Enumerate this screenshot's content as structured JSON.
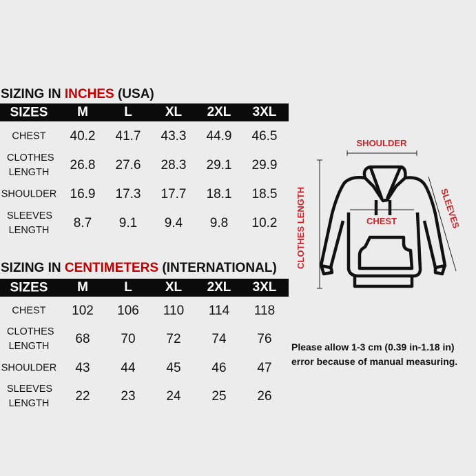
{
  "sizes_header": "SIZES",
  "sizes": [
    "M",
    "L",
    "XL",
    "2XL",
    "3XL"
  ],
  "inches": {
    "title_pre": "SIZING IN ",
    "title_unit": "INCHES",
    "title_post": " (USA)",
    "rows": [
      {
        "label": "CHEST",
        "values": [
          "40.2",
          "41.7",
          "43.3",
          "44.9",
          "46.5"
        ]
      },
      {
        "label": "CLOTHES LENGTH",
        "values": [
          "26.8",
          "27.6",
          "28.3",
          "29.1",
          "29.9"
        ]
      },
      {
        "label": "SHOULDER",
        "values": [
          "16.9",
          "17.3",
          "17.7",
          "18.1",
          "18.5"
        ]
      },
      {
        "label": "SLEEVES LENGTH",
        "values": [
          "8.7",
          "9.1",
          "9.4",
          "9.8",
          "10.2"
        ]
      }
    ]
  },
  "cm": {
    "title_pre": "SIZING IN ",
    "title_unit": "CENTIMETERS",
    "title_post": " (INTERNATIONAL)",
    "rows": [
      {
        "label": "CHEST",
        "values": [
          "102",
          "106",
          "110",
          "114",
          "118"
        ]
      },
      {
        "label": "CLOTHES LENGTH",
        "values": [
          "68",
          "70",
          "72",
          "74",
          "76"
        ]
      },
      {
        "label": "SHOULDER",
        "values": [
          "43",
          "44",
          "45",
          "46",
          "47"
        ]
      },
      {
        "label": "SLEEVES LENGTH",
        "values": [
          "22",
          "23",
          "24",
          "25",
          "26"
        ]
      }
    ]
  },
  "diagram": {
    "shoulder": "SHOULDER",
    "chest": "CHEST",
    "sleeves": "SLEEVES",
    "clothes_length": "CLOTHES LENGTH"
  },
  "note": [
    "Please allow 1-3 cm (0.39 in-1.18 in)",
    "error because of manual measuring."
  ],
  "colors": {
    "accent": "#c00000",
    "header_bg": "#0b0b0b",
    "background": "#ececec"
  }
}
